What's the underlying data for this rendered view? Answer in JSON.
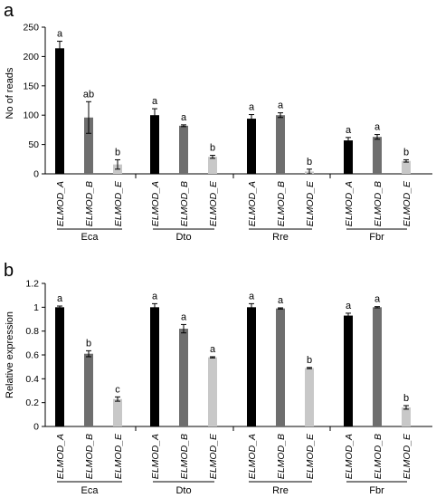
{
  "figure": {
    "panels": [
      {
        "id": "a",
        "letter": "a",
        "ylabel": "No of reads"
      },
      {
        "id": "b",
        "letter": "b",
        "ylabel": "Relative expression"
      }
    ]
  },
  "chart_data": [
    {
      "panel": "a",
      "type": "bar",
      "ylabel": "No of reads",
      "ylim": [
        0,
        250
      ],
      "yticks": [
        0,
        50,
        100,
        150,
        200,
        250
      ],
      "ytick_labels": [
        "0",
        "50",
        "100",
        "150",
        "200",
        "250"
      ],
      "categories": [
        "ELMOD_A",
        "ELMOD_B",
        "ELMOD_E"
      ],
      "groups": [
        "Eca",
        "Dto",
        "Rre",
        "Fbr"
      ],
      "colors": [
        "#000000",
        "#6e6e6e",
        "#c8c8c8"
      ],
      "bars": [
        {
          "group": "Eca",
          "category": "ELMOD_A",
          "value": 214,
          "error": 12,
          "letter": "a"
        },
        {
          "group": "Eca",
          "category": "ELMOD_B",
          "value": 96,
          "error": 27,
          "letter": "ab"
        },
        {
          "group": "Eca",
          "category": "ELMOD_E",
          "value": 16,
          "error": 8,
          "letter": "b"
        },
        {
          "group": "Dto",
          "category": "ELMOD_A",
          "value": 100,
          "error": 11,
          "letter": "a"
        },
        {
          "group": "Dto",
          "category": "ELMOD_B",
          "value": 82,
          "error": 1.5,
          "letter": "a"
        },
        {
          "group": "Dto",
          "category": "ELMOD_E",
          "value": 29,
          "error": 2.5,
          "letter": "b"
        },
        {
          "group": "Rre",
          "category": "ELMOD_A",
          "value": 94,
          "error": 7,
          "letter": "a"
        },
        {
          "group": "Rre",
          "category": "ELMOD_B",
          "value": 100,
          "error": 4,
          "letter": "a"
        },
        {
          "group": "Rre",
          "category": "ELMOD_E",
          "value": 4,
          "error": 4,
          "letter": "b"
        },
        {
          "group": "Fbr",
          "category": "ELMOD_A",
          "value": 57,
          "error": 5,
          "letter": "a"
        },
        {
          "group": "Fbr",
          "category": "ELMOD_B",
          "value": 63,
          "error": 4,
          "letter": "a"
        },
        {
          "group": "Fbr",
          "category": "ELMOD_E",
          "value": 22,
          "error": 2,
          "letter": "b"
        }
      ]
    },
    {
      "panel": "b",
      "type": "bar",
      "ylabel": "Relative expression",
      "ylim": [
        0,
        1.2
      ],
      "yticks": [
        0,
        0.2,
        0.4,
        0.6,
        0.8,
        1,
        1.2
      ],
      "ytick_labels": [
        "0",
        "0.2",
        "0.4",
        "0.6",
        "0.8",
        "1",
        "1.2"
      ],
      "categories": [
        "ELMOD_A",
        "ELMOD_B",
        "ELMOD_E"
      ],
      "groups": [
        "Eca",
        "Dto",
        "Rre",
        "Fbr"
      ],
      "colors": [
        "#000000",
        "#6e6e6e",
        "#c8c8c8"
      ],
      "bars": [
        {
          "group": "Eca",
          "category": "ELMOD_A",
          "value": 1.0,
          "error": 0.01,
          "letter": "a"
        },
        {
          "group": "Eca",
          "category": "ELMOD_B",
          "value": 0.61,
          "error": 0.025,
          "letter": "b"
        },
        {
          "group": "Eca",
          "category": "ELMOD_E",
          "value": 0.23,
          "error": 0.018,
          "letter": "c"
        },
        {
          "group": "Dto",
          "category": "ELMOD_A",
          "value": 1.0,
          "error": 0.03,
          "letter": "a"
        },
        {
          "group": "Dto",
          "category": "ELMOD_B",
          "value": 0.82,
          "error": 0.035,
          "letter": "a"
        },
        {
          "group": "Dto",
          "category": "ELMOD_E",
          "value": 0.58,
          "error": 0.005,
          "letter": "a"
        },
        {
          "group": "Rre",
          "category": "ELMOD_A",
          "value": 1.0,
          "error": 0.03,
          "letter": "a"
        },
        {
          "group": "Rre",
          "category": "ELMOD_B",
          "value": 0.99,
          "error": 0.005,
          "letter": "a"
        },
        {
          "group": "Rre",
          "category": "ELMOD_E",
          "value": 0.49,
          "error": 0.005,
          "letter": "b"
        },
        {
          "group": "Fbr",
          "category": "ELMOD_A",
          "value": 0.93,
          "error": 0.02,
          "letter": "a"
        },
        {
          "group": "Fbr",
          "category": "ELMOD_B",
          "value": 1.0,
          "error": 0.005,
          "letter": "a"
        },
        {
          "group": "Fbr",
          "category": "ELMOD_E",
          "value": 0.16,
          "error": 0.015,
          "letter": "b"
        }
      ]
    }
  ]
}
